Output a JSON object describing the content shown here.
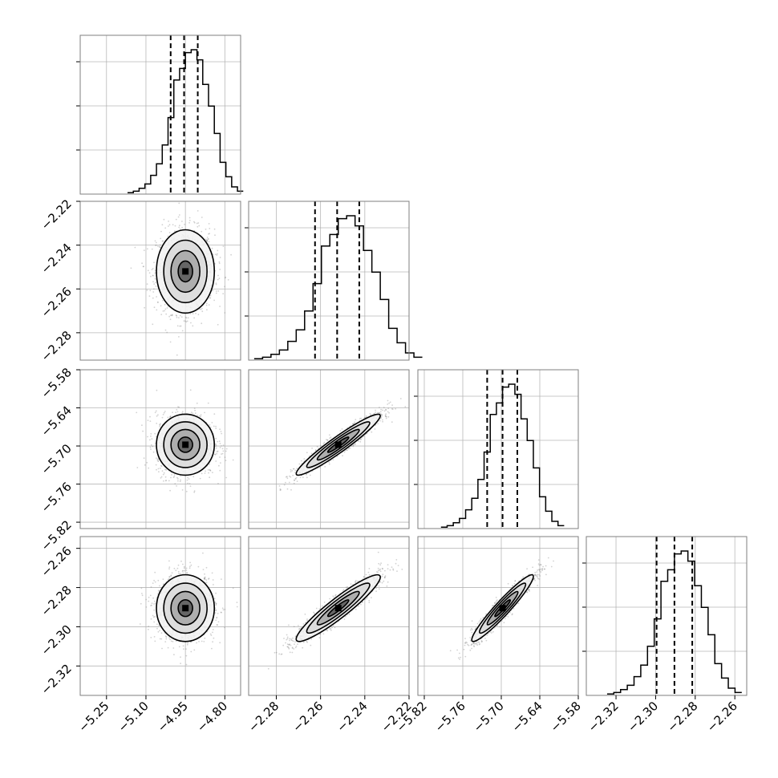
{
  "chart_data": {
    "type": "corner",
    "dims": [
      {
        "center": -4.95,
        "sd": 0.055,
        "q16": -5.006,
        "q50": -4.955,
        "q84": -4.903,
        "range": [
          -5.35,
          -4.74
        ],
        "ticks": [
          "−5.25",
          "−5.10",
          "−4.95",
          "−4.80"
        ],
        "tick_values": [
          -5.25,
          -5.1,
          -4.95,
          -4.8
        ]
      },
      {
        "center": -2.252,
        "sd": 0.0095,
        "q16": -2.2625,
        "q50": -2.2525,
        "q84": -2.2425,
        "range": [
          -2.2925,
          -2.22
        ],
        "ticks": [
          "−2.28",
          "−2.26",
          "−2.24",
          "−2.22"
        ],
        "tick_values": [
          -2.28,
          -2.26,
          -2.24,
          -2.22
        ]
      },
      {
        "center": -5.698,
        "sd": 0.024,
        "q16": -5.722,
        "q50": -5.698,
        "q84": -5.675,
        "range": [
          -5.83,
          -5.58
        ],
        "ticks": [
          "−5.82",
          "−5.76",
          "−5.70",
          "−5.64",
          "−5.58"
        ],
        "tick_values": [
          -5.82,
          -5.76,
          -5.7,
          -5.64,
          -5.58
        ]
      },
      {
        "center": -2.2905,
        "sd": 0.0085,
        "q16": -2.2995,
        "q50": -2.2905,
        "q84": -2.2815,
        "range": [
          -2.335,
          -2.254
        ],
        "ticks": [
          "−2.32",
          "−2.30",
          "−2.28",
          "−2.26"
        ],
        "tick_values": [
          -2.32,
          -2.3,
          -2.28,
          -2.26
        ]
      }
    ],
    "correlations": [
      [
        1.0,
        0.0,
        0.0,
        0.0
      ],
      [
        0.0,
        1.0,
        0.95,
        0.93
      ],
      [
        0.0,
        0.95,
        1.0,
        0.95
      ],
      [
        0.0,
        0.93,
        0.95,
        1.0
      ]
    ],
    "hist_bins": 20,
    "hist_profile": [
      0.01,
      0.02,
      0.04,
      0.07,
      0.13,
      0.21,
      0.34,
      0.53,
      0.79,
      0.87,
      0.98,
      1.0,
      0.93,
      0.76,
      0.61,
      0.42,
      0.22,
      0.12,
      0.05,
      0.02
    ],
    "hist_yticks": 3,
    "contour_levels_sigma": [
      0.5,
      1.0,
      1.5,
      2.0
    ],
    "quantiles": [
      0.16,
      0.5,
      0.84
    ],
    "grid": true,
    "colors": {
      "lines": "#000000",
      "points": "#7f7f7f",
      "frame": "#7f7f7f",
      "grid": "#b0b0b0"
    }
  }
}
